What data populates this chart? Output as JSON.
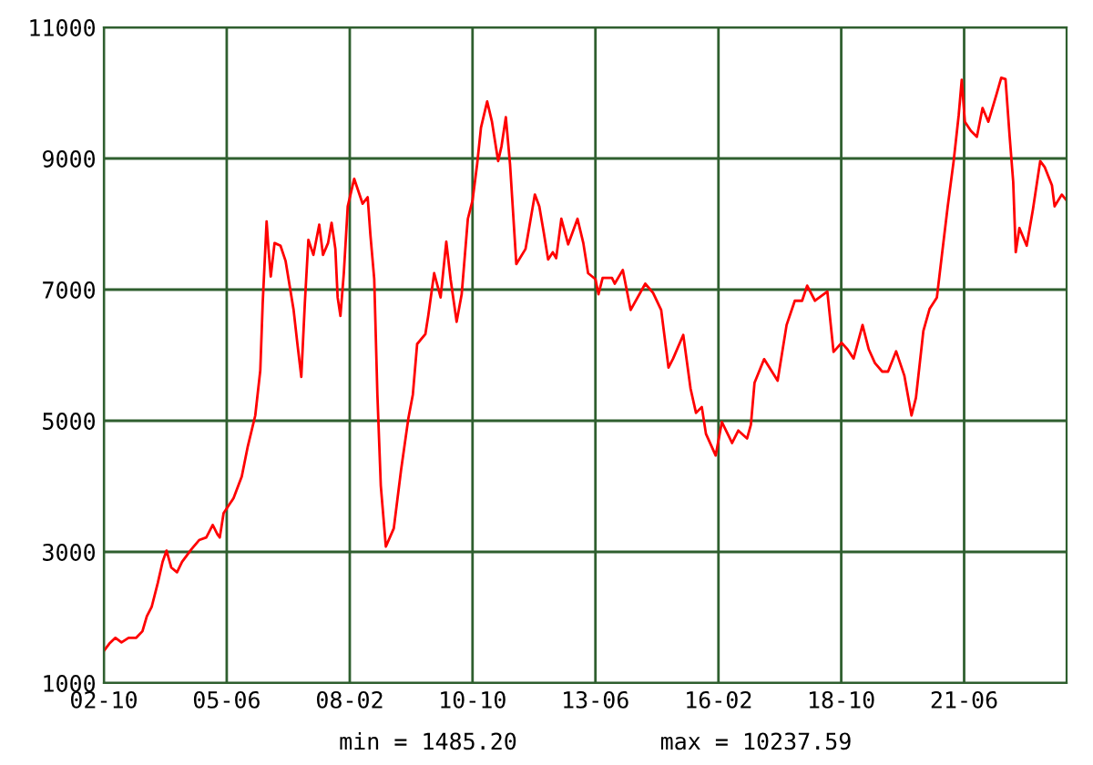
{
  "chart_data": {
    "type": "line",
    "x": [
      "2002-10-01",
      "2002-11-13",
      "2003-01-01",
      "2003-02-18",
      "2003-04-15",
      "2003-06-15",
      "2003-08-03",
      "2003-09-07",
      "2003-10-15",
      "2003-12-03",
      "2004-01-10",
      "2004-02-10",
      "2004-03-19",
      "2004-05-03",
      "2004-06-12",
      "2004-08-25",
      "2004-10-25",
      "2004-12-21",
      "2005-02-10",
      "2005-03-19",
      "2005-04-07",
      "2005-05-07",
      "2005-07-25",
      "2005-09-28",
      "2005-11-15",
      "2006-01-13",
      "2006-02-22",
      "2006-03-13",
      "2006-04-13",
      "2006-04-28",
      "2006-05-16",
      "2006-06-15",
      "2006-08-01",
      "2006-09-10",
      "2006-11-13",
      "2006-12-15",
      "2007-01-13",
      "2007-02-10",
      "2007-03-10",
      "2007-04-19",
      "2007-06-04",
      "2007-07-04",
      "2007-08-13",
      "2007-09-10",
      "2007-10-10",
      "2007-10-28",
      "2007-11-19",
      "2007-12-16",
      "2008-01-16",
      "2008-03-07",
      "2008-05-13",
      "2008-06-22",
      "2008-07-13",
      "2008-08-13",
      "2008-09-07",
      "2008-10-04",
      "2008-11-13",
      "2009-01-15",
      "2009-03-13",
      "2009-05-10",
      "2009-06-15",
      "2009-07-19",
      "2009-09-22",
      "2009-10-15",
      "2009-12-01",
      "2010-01-21",
      "2010-03-07",
      "2010-04-10",
      "2010-05-28",
      "2010-07-07",
      "2010-08-25",
      "2010-10-01",
      "2010-11-07",
      "2010-12-07",
      "2011-01-25",
      "2011-03-04",
      "2011-04-22",
      "2011-05-19",
      "2011-06-22",
      "2011-07-25",
      "2011-09-13",
      "2011-11-25",
      "2012-02-07",
      "2012-03-13",
      "2012-04-15",
      "2012-05-22",
      "2012-06-28",
      "2012-07-25",
      "2012-09-04",
      "2012-10-28",
      "2013-01-10",
      "2013-02-25",
      "2013-04-04",
      "2013-06-01",
      "2013-06-25",
      "2013-07-28",
      "2013-10-10",
      "2013-11-01",
      "2014-01-04",
      "2014-03-07",
      "2014-07-01",
      "2014-09-01",
      "2014-11-04",
      "2015-01-01",
      "2015-02-07",
      "2015-04-28",
      "2015-06-25",
      "2015-08-07",
      "2015-09-22",
      "2015-10-25",
      "2016-01-10",
      "2016-02-28",
      "2016-05-19",
      "2016-07-07",
      "2016-09-15",
      "2016-10-15",
      "2016-11-13",
      "2017-01-28",
      "2017-05-15",
      "2017-07-25",
      "2017-09-28",
      "2017-11-25",
      "2018-01-04",
      "2018-03-07",
      "2018-06-13",
      "2018-08-01",
      "2018-10-04",
      "2018-11-19",
      "2019-01-07",
      "2019-03-19",
      "2019-05-07",
      "2019-06-25",
      "2019-08-22",
      "2019-10-07",
      "2019-12-10",
      "2020-02-13",
      "2020-04-10",
      "2020-05-15",
      "2020-07-13",
      "2020-09-01",
      "2020-10-28",
      "2020-12-07",
      "2021-01-22",
      "2021-03-10",
      "2021-04-19",
      "2021-05-13",
      "2021-06-07",
      "2021-07-25",
      "2021-09-10",
      "2021-10-25",
      "2021-12-10",
      "2022-02-13",
      "2022-03-22",
      "2022-04-25",
      "2022-05-28",
      "2022-06-25",
      "2022-07-15",
      "2022-08-13",
      "2022-10-10",
      "2022-11-28",
      "2023-01-25",
      "2023-03-01",
      "2023-04-28",
      "2023-05-19",
      "2023-07-15",
      "2023-08-22"
    ],
    "series": [
      {
        "color": "#ff0000",
        "values": [
          1490,
          1600,
          1690,
          1620,
          1690,
          1690,
          1790,
          2020,
          2160,
          2530,
          2850,
          3020,
          2760,
          2690,
          2850,
          3040,
          3180,
          3220,
          3410,
          3270,
          3220,
          3590,
          3820,
          4150,
          4610,
          5080,
          5770,
          6790,
          8040,
          7620,
          7200,
          7710,
          7670,
          7440,
          6690,
          6140,
          5670,
          6790,
          7760,
          7530,
          7990,
          7530,
          7710,
          8020,
          7620,
          6880,
          6600,
          7250,
          8270,
          8690,
          8310,
          8410,
          7850,
          7160,
          5400,
          4010,
          3080,
          3360,
          4240,
          5030,
          5400,
          6170,
          6320,
          6600,
          7250,
          6880,
          7730,
          7160,
          6510,
          6930,
          8080,
          8360,
          8920,
          9470,
          9870,
          9560,
          8960,
          9190,
          9630,
          8920,
          7390,
          7620,
          8450,
          8270,
          7900,
          7460,
          7570,
          7480,
          8080,
          7690,
          8080,
          7710,
          7250,
          7160,
          6930,
          7180,
          7180,
          7090,
          7300,
          6690,
          7090,
          6950,
          6690,
          5810,
          5950,
          6310,
          5490,
          5120,
          5210,
          4800,
          4470,
          4980,
          4660,
          4850,
          4730,
          4940,
          5580,
          5940,
          5610,
          6460,
          6830,
          6830,
          7060,
          6830,
          6970,
          6050,
          6190,
          6090,
          5950,
          6460,
          6090,
          5880,
          5750,
          5750,
          6060,
          5690,
          5080,
          5350,
          6370,
          6710,
          6880,
          7530,
          8270,
          8960,
          9660,
          10200,
          9560,
          9420,
          9330,
          9770,
          9560,
          9980,
          10230,
          10210,
          9330,
          8640,
          7570,
          7940,
          7670,
          8220,
          8960,
          8870,
          8590,
          8270,
          8450,
          8360
        ]
      }
    ],
    "xlim": [
      "2002-10-01",
      "2023-08-22"
    ],
    "xticks": [
      {
        "value": "2002-10-01",
        "label": "02-10"
      },
      {
        "value": "2005-06-01",
        "label": "05-06"
      },
      {
        "value": "2008-02-01",
        "label": "08-02"
      },
      {
        "value": "2010-10-01",
        "label": "10-10"
      },
      {
        "value": "2013-06-01",
        "label": "13-06"
      },
      {
        "value": "2016-02-01",
        "label": "16-02"
      },
      {
        "value": "2018-10-01",
        "label": "18-10"
      },
      {
        "value": "2021-06-01",
        "label": "21-06"
      }
    ],
    "ylim": [
      1000,
      11000
    ],
    "yticks": [
      1000,
      3000,
      5000,
      7000,
      9000,
      11000
    ],
    "grid": true,
    "legend": false,
    "marker": "none",
    "line_style": "solid",
    "annotations": [
      "min = 1485.20",
      "max = 10237.59"
    ]
  }
}
